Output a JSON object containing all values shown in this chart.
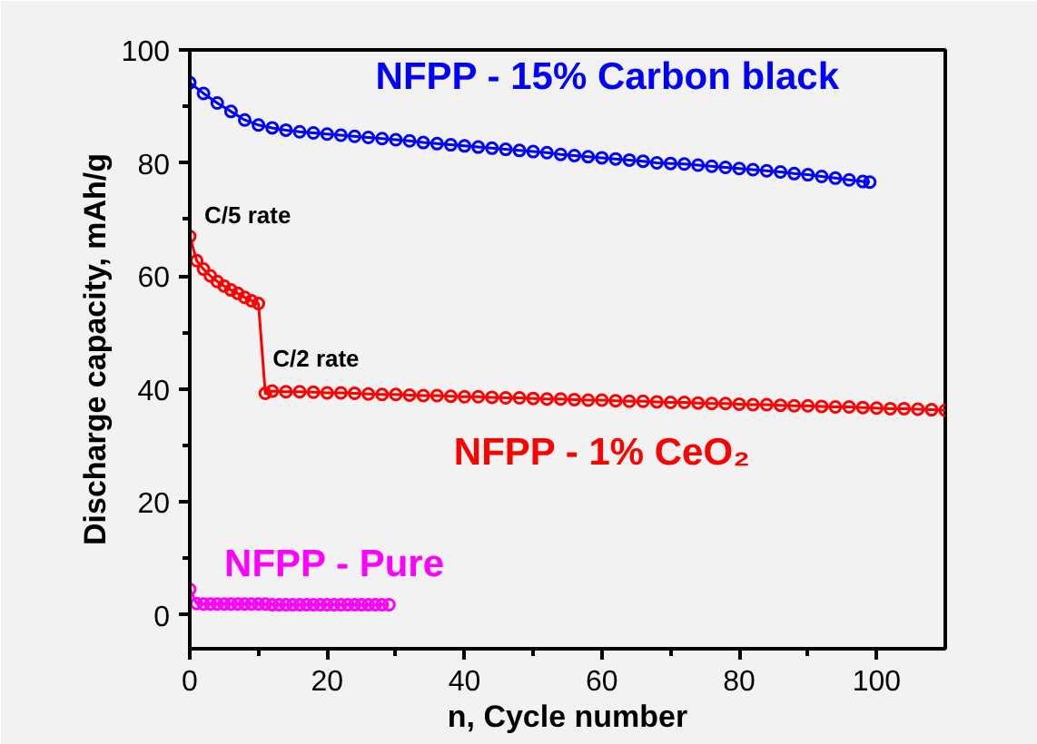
{
  "chart_data": {
    "type": "line",
    "xlabel": "n, Cycle number",
    "ylabel": "Discharge capacity, mAh/g",
    "xlim": [
      0,
      110
    ],
    "ylim": [
      -6,
      100
    ],
    "xticks": [
      0,
      20,
      40,
      60,
      80,
      100
    ],
    "yticks": [
      0,
      20,
      40,
      60,
      80,
      100
    ],
    "marker": "circle",
    "line_style": "solid",
    "grid": false,
    "series": [
      {
        "name": "NFPP - 15% Carbon black",
        "color": "#0000ff",
        "x": [
          0,
          2,
          4,
          6,
          8,
          10,
          12,
          14,
          16,
          18,
          20,
          22,
          24,
          26,
          28,
          30,
          32,
          34,
          36,
          38,
          40,
          42,
          44,
          46,
          48,
          50,
          52,
          54,
          56,
          58,
          60,
          62,
          64,
          66,
          68,
          70,
          72,
          74,
          76,
          78,
          80,
          82,
          84,
          86,
          88,
          90,
          92,
          94,
          96,
          98,
          99
        ],
        "values": [
          94.2,
          92.3,
          90.6,
          89.1,
          87.6,
          86.7,
          86.2,
          85.8,
          85.5,
          85.3,
          85.1,
          84.9,
          84.7,
          84.5,
          84.3,
          84.1,
          83.9,
          83.6,
          83.4,
          83.2,
          83.0,
          82.8,
          82.6,
          82.4,
          82.2,
          82.0,
          81.8,
          81.5,
          81.3,
          81.1,
          80.9,
          80.7,
          80.5,
          80.3,
          80.0,
          79.9,
          79.8,
          79.6,
          79.4,
          79.2,
          79.0,
          78.8,
          78.6,
          78.4,
          78.1,
          77.9,
          77.6,
          77.3,
          77.0,
          76.7,
          76.6
        ]
      },
      {
        "name": "NFPP - 1% CeO₂",
        "color": "#ff0000",
        "x": [
          0,
          1,
          2,
          3,
          4,
          5,
          6,
          7,
          8,
          9,
          10,
          11,
          12,
          14,
          16,
          18,
          20,
          22,
          24,
          26,
          28,
          30,
          32,
          34,
          36,
          38,
          40,
          42,
          44,
          46,
          48,
          50,
          52,
          54,
          56,
          58,
          60,
          62,
          64,
          66,
          68,
          70,
          72,
          74,
          76,
          78,
          80,
          82,
          84,
          86,
          88,
          90,
          92,
          94,
          96,
          98,
          100,
          102,
          104,
          106,
          108,
          110
        ],
        "values": [
          67.0,
          62.7,
          61.2,
          60.0,
          59.0,
          58.2,
          57.5,
          56.9,
          56.2,
          55.6,
          55.1,
          39.2,
          39.6,
          39.5,
          39.5,
          39.4,
          39.3,
          39.3,
          39.2,
          39.1,
          39.0,
          39.0,
          38.9,
          38.8,
          38.8,
          38.7,
          38.6,
          38.6,
          38.5,
          38.4,
          38.4,
          38.3,
          38.2,
          38.2,
          38.1,
          38.0,
          38.0,
          37.9,
          37.8,
          37.8,
          37.7,
          37.6,
          37.6,
          37.5,
          37.4,
          37.4,
          37.3,
          37.2,
          37.2,
          37.1,
          37.0,
          37.0,
          36.9,
          36.8,
          36.8,
          36.7,
          36.6,
          36.5,
          36.5,
          36.4,
          36.3,
          36.2
        ]
      },
      {
        "name": "NFPP - Pure",
        "color": "#ff00ff",
        "x": [
          0,
          1,
          2,
          3,
          4,
          5,
          6,
          7,
          8,
          9,
          10,
          11,
          12,
          13,
          14,
          15,
          16,
          17,
          18,
          19,
          20,
          21,
          22,
          23,
          24,
          25,
          26,
          27,
          28,
          29
        ],
        "values": [
          4.5,
          2.0,
          1.9,
          1.9,
          1.9,
          1.9,
          1.9,
          1.9,
          1.9,
          1.9,
          1.9,
          1.9,
          1.8,
          1.8,
          1.8,
          1.8,
          1.8,
          1.8,
          1.8,
          1.8,
          1.8,
          1.8,
          1.8,
          1.8,
          1.8,
          1.8,
          1.8,
          1.8,
          1.8,
          1.8
        ]
      }
    ],
    "annotations": [
      {
        "text": "C/5 rate",
        "x": 0,
        "y": 67.0
      },
      {
        "text": "C/2 rate",
        "x": 11,
        "y": 39.2
      }
    ]
  }
}
